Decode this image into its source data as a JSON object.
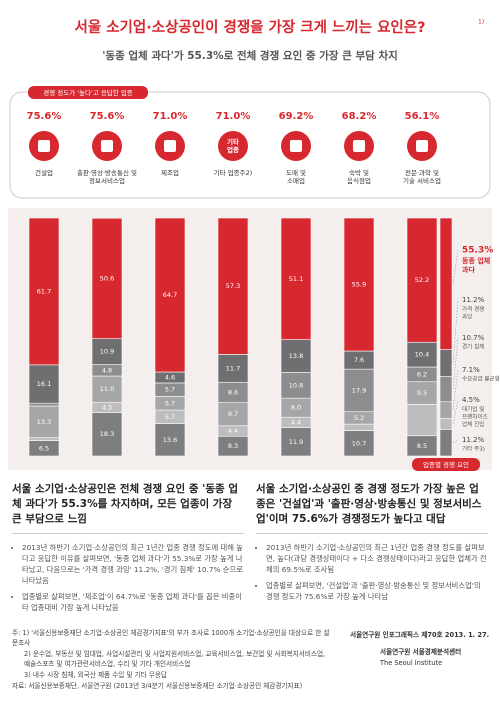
{
  "title": "서울 소기업·소상공인이 경쟁을 가장 크게 느끼는 요인은?",
  "title_note": "1)",
  "subtitle": "'동종 업체 과다'가 55.3%로 전체 경쟁 요인 중 가장 큰 부담 차지",
  "industry_panel": {
    "label": "경쟁 정도가 '높다'고 응답한 업종",
    "items": [
      {
        "value": "75.6%",
        "name": "건설업"
      },
      {
        "value": "75.6%",
        "name": "출판·영상·방송통신 및\n정보서비스업"
      },
      {
        "value": "71.0%",
        "name": "제조업"
      },
      {
        "value": "71.0%",
        "name": "기타 업종주2)",
        "icon_text": "기타\n업종"
      },
      {
        "value": "69.2%",
        "name": "도매 및\n소매업"
      },
      {
        "value": "68.2%",
        "name": "숙박 및\n음식점업"
      },
      {
        "value": "56.1%",
        "name": "전문·과학 및\n기술 서비스업"
      }
    ]
  },
  "chart_data": {
    "type": "stacked_bar",
    "label": "업종별 경쟁 요인",
    "ylim": [
      0,
      100
    ],
    "series": [
      {
        "name": "동종 업체\n과다",
        "color": "#d7282f",
        "values": [
          61.7,
          50.6,
          64.7,
          57.3,
          51.1,
          55.9,
          52.2,
          55.3
        ],
        "value_labels": [
          "61.7",
          "50.6",
          "64.7",
          "57.3",
          "51.1",
          "55.9",
          "52.2",
          "55.3%"
        ]
      },
      {
        "name": "가격 경쟁\n과잉",
        "color": "#6f6e71",
        "values": [
          16.1,
          10.9,
          4.6,
          11.7,
          13.8,
          7.6,
          10.4,
          11.2
        ],
        "value_labels": [
          "16.1",
          "10.9",
          "4.6",
          "11.7",
          "13.8",
          "7.6",
          "10.4",
          "11.2%"
        ]
      },
      {
        "name": "경기 침체",
        "color": "#8d8c8f",
        "values": [
          1.2,
          4.8,
          5.7,
          8.6,
          10.8,
          17.9,
          6.2,
          10.7
        ],
        "value_labels": [
          null,
          "4.8",
          "5.7",
          "8.6",
          "10.8",
          "17.9",
          "6.2",
          "10.7%"
        ]
      },
      {
        "name": "수요공급 불균형",
        "color": "#a6a5a8",
        "values": [
          13.3,
          11.0,
          5.7,
          9.7,
          8.0,
          5.2,
          9.5,
          7.1
        ],
        "value_labels": [
          "13.3",
          "11.0",
          "5.7",
          "9.7",
          "8.0",
          "5.2",
          "9.5",
          "7.1%"
        ]
      },
      {
        "name": "대기업 및\n프랜차이즈\n업체 진입",
        "color": "#bdbcbf",
        "values": [
          1.2,
          4.3,
          5.7,
          4.4,
          4.4,
          2.7,
          13.2,
          4.5
        ],
        "value_labels": [
          null,
          "4.3",
          "5.7",
          "4.4",
          "4.4",
          null,
          null,
          "4.5%"
        ]
      },
      {
        "name": "기타 주3)",
        "color": "#7e7d80",
        "values": [
          6.5,
          18.3,
          13.6,
          8.3,
          11.9,
          10.7,
          8.5,
          11.2
        ],
        "value_labels": [
          "6.5",
          "18.3",
          "13.6",
          "8.3",
          "11.9",
          "10.7",
          "8.5",
          "11.2%"
        ]
      }
    ]
  },
  "sections": [
    {
      "heading": "서울 소기업·소상공인은 전체 경쟁 요인 중 '동종 업체 과다'가 55.3%를 차지하며, 모든 업종이 가장 큰 부담으로 느낌",
      "bullets": [
        "2013년 하반기 소기업·소상공인의 최근 1년간 업종 경쟁 정도에 대해 높다고 응답한 이유를 살펴보면, '동종 업체 과다'가 55.3%로 가장 높게 나타났고, 다음으로는 '가격 경쟁 과잉' 11.2%, '경기 침체' 10.7% 순으로 나타났음",
        "업종별로 살펴보면, '제조업'이 64.7%로 '동종 업체 과다'를 꼽은 비중이 타 업종대비 가장 높게 나타났음"
      ]
    },
    {
      "heading": "서울 소기업·소상공인 중 경쟁 정도가 가장 높은 업종은 '건설업'과 '출판·영상·방송통신 및 정보서비스업'이며 75.6%가 경쟁정도가 높다고 대답",
      "bullets": [
        "2013년 하반기 소기업·소상공인의 최근 1년간 업종 경쟁 정도를 살펴보면, 높다(과당 경쟁상태이다 + 다소 경쟁상태이다)라고 응답한 업체가 전체의 69.5%로 조사됨",
        "업종별로 살펴보면, '건설업'과 '출판·영상·방송통신 및 정보서비스업'의 경쟁 정도가 75.6%로 가장 높게 나타남"
      ]
    }
  ],
  "footnotes": [
    "주: 1) '서울신용보증재단 소기업·소상공인 체감경기지표'의 부가 조사로 1000개 소기업·소상공인을 대상으로 한 설문조사",
    "2) 운수업, 부동산 및 임대업, 사업시설관리 및 사업지원서비스업, 교육서비스업, 보건업 및 사회복지서비스업, 예술스포츠 및 여가관련서비스업, 수리 및 기타 개인서비스업",
    "3) 내수 시장 침체, 외국산 제품 수입 및 기타 무응답"
  ],
  "source": "자료: 서울신용보증재단, 서울연구원 (2013년 3/4분기 서울신용보증재단 소기업·소상공인 체감경기지표)",
  "publisher": {
    "issue": "서울연구원 인포그래픽스 제70호 2013. 1. 27.",
    "center": "서울연구원 서울경제분석센터",
    "institute": "The Seoul Institute"
  }
}
